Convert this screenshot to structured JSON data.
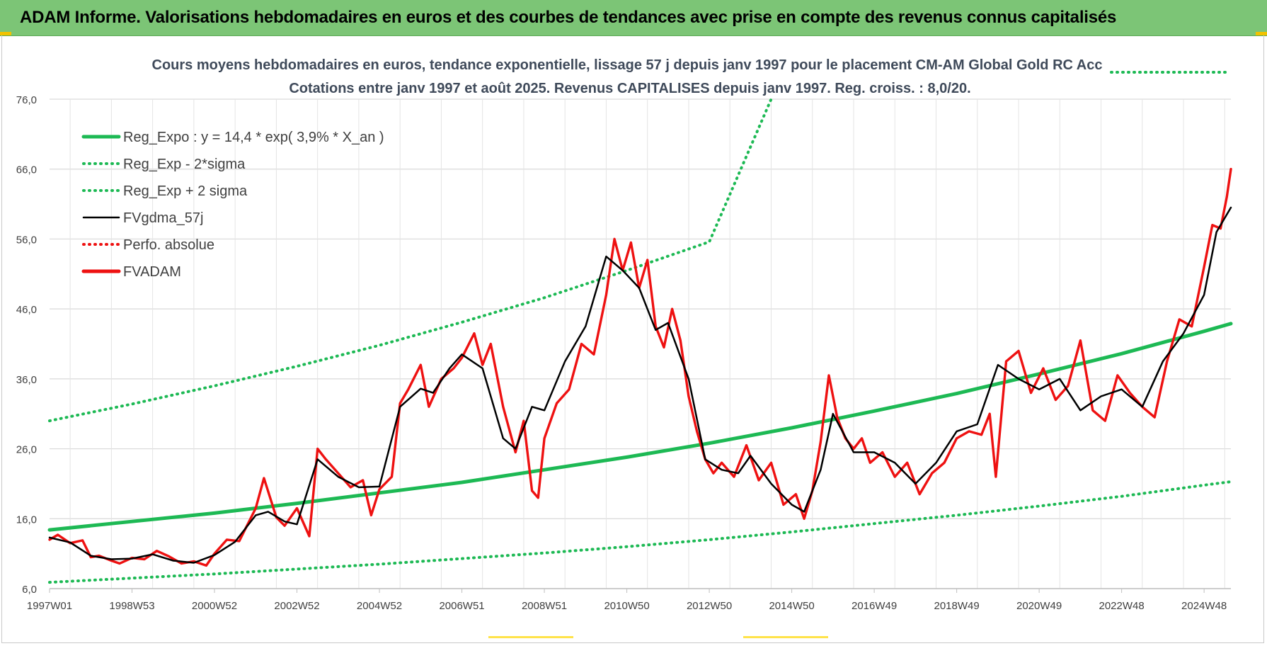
{
  "banner": {
    "title": "ADAM Informe. Valorisations hebdomadaires en euros et des courbes de tendances avec prise en compte des revenus connus capitalisés"
  },
  "colors": {
    "banner_bg": "#7cc576",
    "reg_expo": "#1db954",
    "fvgdma": "#000000",
    "fvadam": "#ee1111",
    "perfo": "#ee1111",
    "grid": "#d9d9d9"
  },
  "chart_data": {
    "type": "line",
    "title": "Cours moyens hebdomadaires en euros, tendance exponentielle, lissage 57 j depuis janv 1997 pour le placement CM-AM Global Gold RC Acc",
    "subtitle": "Cotations entre janv 1997 et août 2025. Revenus CAPITALISES depuis janv 1997. Reg. croiss. : 8,0/20.",
    "xlabel": "",
    "ylabel": "",
    "ylim": [
      6,
      76
    ],
    "xlim": [
      1997.0,
      2025.65
    ],
    "grid": true,
    "legend_position": "top-left",
    "y_ticks": [
      "6,0",
      "16,0",
      "26,0",
      "36,0",
      "46,0",
      "56,0",
      "66,0",
      "76,0"
    ],
    "y_tick_values": [
      6,
      16,
      26,
      36,
      46,
      56,
      66,
      76
    ],
    "x_ticks": [
      "1997W01",
      "1998W53",
      "2000W52",
      "2002W52",
      "2004W52",
      "2006W51",
      "2008W51",
      "2010W50",
      "2012W50",
      "2014W50",
      "2016W49",
      "2018W49",
      "2020W49",
      "2022W48",
      "2024W48"
    ],
    "x_tick_years": [
      1997.0,
      1999.0,
      2001.0,
      2003.0,
      2005.0,
      2007.0,
      2009.0,
      2011.0,
      2013.0,
      2015.0,
      2017.0,
      2019.0,
      2021.0,
      2023.0,
      2025.0
    ],
    "series": [
      {
        "name": "Reg_Expo : y = 14,4 * exp( 3,9% *  X_an )",
        "style": "solid-thick",
        "color": "#1db954",
        "x": [
          1997.0,
          1999.0,
          2001.0,
          2003.0,
          2005.0,
          2007.0,
          2009.0,
          2011.0,
          2013.0,
          2015.0,
          2017.0,
          2019.0,
          2021.0,
          2023.0,
          2025.0,
          2025.65
        ],
        "values": [
          14.4,
          15.6,
          16.8,
          18.2,
          19.7,
          21.2,
          23.0,
          24.8,
          26.8,
          29.0,
          31.4,
          33.9,
          36.7,
          39.6,
          42.8,
          43.9
        ]
      },
      {
        "name": "Reg_Exp - 2*sigma",
        "style": "dotted",
        "color": "#1db954",
        "x": [
          1997.0,
          1999.0,
          2001.0,
          2003.0,
          2005.0,
          2007.0,
          2009.0,
          2011.0,
          2013.0,
          2015.0,
          2017.0,
          2019.0,
          2021.0,
          2023.0,
          2025.0,
          2025.65
        ],
        "values": [
          6.9,
          7.5,
          8.1,
          8.8,
          9.5,
          10.3,
          11.1,
          12.0,
          13.0,
          14.1,
          15.3,
          16.5,
          17.8,
          19.2,
          20.8,
          21.3
        ]
      },
      {
        "name": "Reg_Exp + 2 sigma",
        "style": "dotted",
        "color": "#1db954",
        "x": [
          1997.0,
          1999.0,
          2001.0,
          2003.0,
          2005.0,
          2007.0,
          2009.0,
          2011.0,
          2013.0,
          2014.5
        ],
        "values": [
          30.0,
          32.4,
          35.0,
          37.8,
          40.8,
          44.1,
          47.6,
          51.5,
          55.6,
          76.0
        ]
      },
      {
        "name": "FVgdma_57j",
        "style": "solid",
        "color": "#000000",
        "x": [
          1997.0,
          1997.5,
          1998.0,
          1998.5,
          1999.0,
          1999.5,
          2000.0,
          2000.5,
          2001.0,
          2001.5,
          2002.0,
          2002.3,
          2002.7,
          2003.0,
          2003.5,
          2004.0,
          2004.5,
          2005.0,
          2005.5,
          2006.0,
          2006.3,
          2006.7,
          2007.0,
          2007.5,
          2008.0,
          2008.3,
          2008.7,
          2009.0,
          2009.5,
          2010.0,
          2010.5,
          2010.9,
          2011.3,
          2011.7,
          2012.0,
          2012.5,
          2012.9,
          2013.3,
          2013.7,
          2014.0,
          2014.5,
          2015.0,
          2015.3,
          2015.7,
          2016.0,
          2016.5,
          2017.0,
          2017.5,
          2018.0,
          2018.5,
          2019.0,
          2019.5,
          2020.0,
          2020.5,
          2021.0,
          2021.5,
          2022.0,
          2022.5,
          2023.0,
          2023.5,
          2024.0,
          2024.5,
          2025.0,
          2025.3,
          2025.65
        ],
        "values": [
          13.3,
          12.6,
          10.7,
          10.2,
          10.3,
          10.9,
          10.0,
          9.7,
          10.8,
          12.7,
          16.5,
          17.0,
          15.6,
          15.2,
          24.5,
          22.0,
          20.5,
          20.6,
          32.0,
          34.6,
          34.0,
          37.5,
          39.5,
          37.5,
          27.5,
          26.0,
          32.0,
          31.5,
          38.5,
          43.5,
          53.5,
          51.5,
          49.0,
          43.0,
          44.0,
          36.0,
          24.5,
          23.0,
          22.5,
          25.0,
          21.0,
          18.0,
          17.0,
          23.0,
          31.0,
          25.5,
          25.5,
          24.0,
          21.0,
          24.0,
          28.5,
          29.5,
          38.0,
          36.0,
          34.5,
          36.0,
          31.5,
          33.5,
          34.5,
          32.0,
          38.5,
          42.5,
          48.0,
          57.0,
          60.5
        ]
      },
      {
        "name": "Perfo. absolue",
        "style": "dotted",
        "color": "#ee1111",
        "x": [],
        "values": []
      },
      {
        "name": "FVADAM",
        "style": "solid-thick",
        "color": "#ee1111",
        "x": [
          1997.0,
          1997.2,
          1997.5,
          1997.8,
          1998.0,
          1998.2,
          1998.5,
          1998.7,
          1999.0,
          1999.3,
          1999.6,
          1999.9,
          2000.2,
          2000.5,
          2000.8,
          2001.0,
          2001.3,
          2001.6,
          2002.0,
          2002.2,
          2002.5,
          2002.7,
          2003.0,
          2003.3,
          2003.5,
          2003.7,
          2004.0,
          2004.3,
          2004.6,
          2004.8,
          2005.0,
          2005.3,
          2005.5,
          2005.7,
          2006.0,
          2006.2,
          2006.5,
          2006.8,
          2007.0,
          2007.3,
          2007.5,
          2007.7,
          2008.0,
          2008.3,
          2008.5,
          2008.7,
          2008.85,
          2009.0,
          2009.3,
          2009.6,
          2009.9,
          2010.2,
          2010.5,
          2010.7,
          2010.9,
          2011.1,
          2011.3,
          2011.5,
          2011.7,
          2011.9,
          2012.1,
          2012.3,
          2012.5,
          2012.7,
          2012.9,
          2013.1,
          2013.3,
          2013.6,
          2013.9,
          2014.2,
          2014.5,
          2014.8,
          2015.1,
          2015.3,
          2015.5,
          2015.7,
          2015.9,
          2016.1,
          2016.3,
          2016.5,
          2016.7,
          2016.9,
          2017.2,
          2017.5,
          2017.8,
          2018.1,
          2018.4,
          2018.7,
          2019.0,
          2019.3,
          2019.6,
          2019.8,
          2019.95,
          2020.2,
          2020.5,
          2020.8,
          2021.1,
          2021.4,
          2021.7,
          2022.0,
          2022.3,
          2022.6,
          2022.9,
          2023.2,
          2023.5,
          2023.8,
          2024.1,
          2024.4,
          2024.7,
          2025.0,
          2025.2,
          2025.4,
          2025.55,
          2025.65
        ],
        "values": [
          13.0,
          13.7,
          12.5,
          12.9,
          10.5,
          10.7,
          10.0,
          9.6,
          10.4,
          10.2,
          11.4,
          10.6,
          9.6,
          9.9,
          9.3,
          11.0,
          13.0,
          12.8,
          17.5,
          21.8,
          16.2,
          15.0,
          17.5,
          13.5,
          26.0,
          24.5,
          22.5,
          20.5,
          21.5,
          16.5,
          20.2,
          22.0,
          32.5,
          34.5,
          38.0,
          32.0,
          36.0,
          37.5,
          39.0,
          42.5,
          38.0,
          41.0,
          32.0,
          25.5,
          30.0,
          20.0,
          19.0,
          27.5,
          32.5,
          34.5,
          41.0,
          39.5,
          48.0,
          56.0,
          51.5,
          55.5,
          49.0,
          53.0,
          43.5,
          40.5,
          46.0,
          41.5,
          33.5,
          28.5,
          24.5,
          22.5,
          24.0,
          22.0,
          26.5,
          21.5,
          24.0,
          18.0,
          19.5,
          16.0,
          20.0,
          27.0,
          36.5,
          30.5,
          27.5,
          26.0,
          27.5,
          24.0,
          25.5,
          22.0,
          24.0,
          19.5,
          22.5,
          24.0,
          27.5,
          28.5,
          28.0,
          31.0,
          22.0,
          38.5,
          40.0,
          34.0,
          37.5,
          33.0,
          35.0,
          41.5,
          31.5,
          30.0,
          36.5,
          34.0,
          32.0,
          30.5,
          38.5,
          44.5,
          43.5,
          52.0,
          58.0,
          57.5,
          62.0,
          66.0
        ]
      }
    ],
    "legend": [
      "Reg_Expo : y = 14,4 * exp( 3,9% *  X_an )",
      "Reg_Exp - 2*sigma",
      "Reg_Exp + 2 sigma",
      "FVgdma_57j",
      "Perfo. absolue",
      "FVADAM"
    ]
  }
}
